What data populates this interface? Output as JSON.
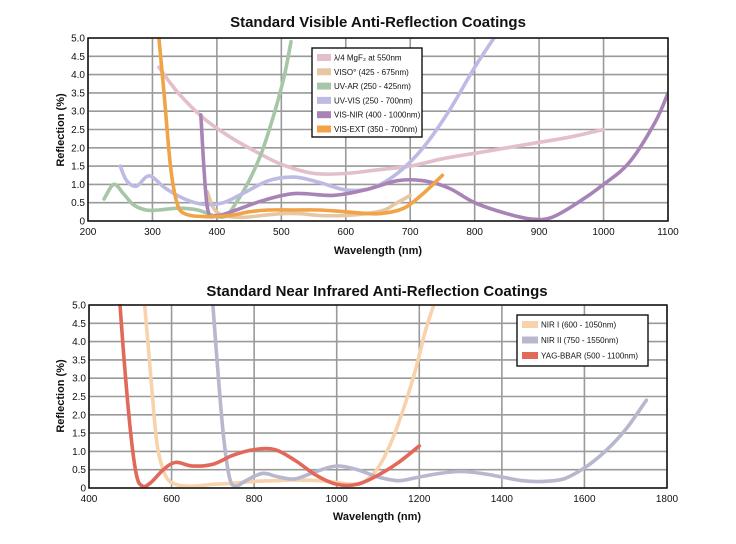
{
  "chart_data": [
    {
      "type": "line",
      "title": "Standard Visible Anti-Reflection Coatings",
      "xlabel": "Wavelength (nm)",
      "ylabel": "Reflection (%)",
      "xlim": [
        200,
        1100
      ],
      "ylim": [
        0,
        5.0
      ],
      "xticks": [
        "200",
        "300",
        "400",
        "500",
        "600",
        "700",
        "800",
        "900",
        "1000",
        "1100"
      ],
      "yticks": [
        "0",
        "0.5",
        "1.0",
        "1.5",
        "2.0",
        "2.5",
        "3.0",
        "3.5",
        "4.0",
        "4.5",
        "5.0"
      ],
      "grid": true,
      "legend_position": "top-center",
      "series": [
        {
          "name": "λ/4 MgF₂ at 550nm",
          "color": "#e3bfc9",
          "points": [
            [
              310,
              4.2
            ],
            [
              340,
              3.5
            ],
            [
              380,
              2.8
            ],
            [
              420,
              2.3
            ],
            [
              460,
              1.9
            ],
            [
              500,
              1.55
            ],
            [
              550,
              1.3
            ],
            [
              600,
              1.3
            ],
            [
              650,
              1.4
            ],
            [
              700,
              1.5
            ],
            [
              750,
              1.7
            ],
            [
              800,
              1.85
            ],
            [
              850,
              2.0
            ],
            [
              900,
              2.15
            ],
            [
              950,
              2.3
            ],
            [
              1000,
              2.5
            ]
          ]
        },
        {
          "name": "VISO° (425 - 675nm)",
          "color": "#e5c7a2",
          "points": [
            [
              385,
              0.8
            ],
            [
              395,
              0.35
            ],
            [
              410,
              0.15
            ],
            [
              440,
              0.1
            ],
            [
              470,
              0.15
            ],
            [
              500,
              0.2
            ],
            [
              530,
              0.2
            ],
            [
              560,
              0.15
            ],
            [
              600,
              0.15
            ],
            [
              630,
              0.2
            ],
            [
              660,
              0.3
            ],
            [
              675,
              0.45
            ],
            [
              700,
              0.7
            ]
          ]
        },
        {
          "name": "UV-AR (250 - 425nm)",
          "color": "#a7c6a7",
          "points": [
            [
              225,
              0.6
            ],
            [
              240,
              1.0
            ],
            [
              255,
              0.75
            ],
            [
              270,
              0.45
            ],
            [
              290,
              0.3
            ],
            [
              310,
              0.3
            ],
            [
              340,
              0.35
            ],
            [
              370,
              0.3
            ],
            [
              400,
              0.12
            ],
            [
              415,
              0.15
            ],
            [
              430,
              0.5
            ],
            [
              450,
              1.1
            ],
            [
              470,
              1.9
            ],
            [
              490,
              3.0
            ],
            [
              505,
              4.0
            ],
            [
              515,
              4.9
            ]
          ]
        },
        {
          "name": "UV-VIS (250 - 700nm)",
          "color": "#bdbbe4",
          "points": [
            [
              250,
              1.5
            ],
            [
              260,
              1.1
            ],
            [
              275,
              0.95
            ],
            [
              290,
              1.2
            ],
            [
              300,
              1.2
            ],
            [
              320,
              0.9
            ],
            [
              350,
              0.6
            ],
            [
              380,
              0.45
            ],
            [
              410,
              0.5
            ],
            [
              440,
              0.75
            ],
            [
              480,
              1.1
            ],
            [
              520,
              1.2
            ],
            [
              560,
              1.05
            ],
            [
              600,
              0.85
            ],
            [
              640,
              0.9
            ],
            [
              680,
              1.3
            ],
            [
              720,
              2.0
            ],
            [
              760,
              3.0
            ],
            [
              800,
              4.2
            ],
            [
              830,
              5.0
            ]
          ]
        },
        {
          "name": "VIS-NIR (400 - 1000nm)",
          "color": "#a884b6",
          "points": [
            [
              375,
              2.9
            ],
            [
              385,
              0.4
            ],
            [
              400,
              0.15
            ],
            [
              430,
              0.3
            ],
            [
              470,
              0.55
            ],
            [
              520,
              0.75
            ],
            [
              580,
              0.7
            ],
            [
              630,
              0.85
            ],
            [
              680,
              1.1
            ],
            [
              720,
              1.1
            ],
            [
              760,
              0.9
            ],
            [
              800,
              0.5
            ],
            [
              850,
              0.2
            ],
            [
              890,
              0.05
            ],
            [
              920,
              0.1
            ],
            [
              960,
              0.5
            ],
            [
              1000,
              1.0
            ],
            [
              1040,
              1.6
            ],
            [
              1080,
              2.7
            ],
            [
              1100,
              3.5
            ]
          ]
        },
        {
          "name": "VIS-EXT (350 - 700nm)",
          "color": "#f0a447",
          "points": [
            [
              310,
              5.0
            ],
            [
              318,
              3.5
            ],
            [
              328,
              1.5
            ],
            [
              338,
              0.5
            ],
            [
              350,
              0.2
            ],
            [
              380,
              0.12
            ],
            [
              420,
              0.15
            ],
            [
              450,
              0.25
            ],
            [
              480,
              0.3
            ],
            [
              520,
              0.3
            ],
            [
              560,
              0.3
            ],
            [
              600,
              0.25
            ],
            [
              650,
              0.2
            ],
            [
              690,
              0.35
            ],
            [
              720,
              0.75
            ],
            [
              750,
              1.25
            ]
          ]
        }
      ]
    },
    {
      "type": "line",
      "title": "Standard Near Infrared Anti-Reflection Coatings",
      "xlabel": "Wavelength (nm)",
      "ylabel": "Reflection (%)",
      "xlim": [
        400,
        1800
      ],
      "ylim": [
        0,
        5.0
      ],
      "xticks": [
        "400",
        "600",
        "800",
        "1000",
        "1200",
        "1400",
        "1600",
        "1800"
      ],
      "yticks": [
        "0",
        "0.5",
        "1.0",
        "1.5",
        "2.0",
        "2.5",
        "3.0",
        "3.5",
        "4.0",
        "4.5",
        "5.0"
      ],
      "grid": true,
      "legend_position": "top-right",
      "series": [
        {
          "name": "NIR I (600 - 1050nm)",
          "color": "#f8d2ab",
          "points": [
            [
              535,
              5.0
            ],
            [
              550,
              3.0
            ],
            [
              565,
              1.2
            ],
            [
              585,
              0.35
            ],
            [
              610,
              0.1
            ],
            [
              650,
              0.05
            ],
            [
              700,
              0.1
            ],
            [
              740,
              0.12
            ],
            [
              800,
              0.18
            ],
            [
              850,
              0.2
            ],
            [
              900,
              0.22
            ],
            [
              960,
              0.2
            ],
            [
              1000,
              0.15
            ],
            [
              1040,
              0.1
            ],
            [
              1070,
              0.2
            ],
            [
              1100,
              0.55
            ],
            [
              1130,
              1.2
            ],
            [
              1160,
              2.1
            ],
            [
              1190,
              3.2
            ],
            [
              1215,
              4.3
            ],
            [
              1235,
              5.0
            ]
          ]
        },
        {
          "name": "NIR II (750 - 1550nm)",
          "color": "#b7b7ce",
          "points": [
            [
              700,
              5.0
            ],
            [
              710,
              3.5
            ],
            [
              725,
              1.5
            ],
            [
              740,
              0.3
            ],
            [
              755,
              0.05
            ],
            [
              780,
              0.2
            ],
            [
              820,
              0.4
            ],
            [
              860,
              0.3
            ],
            [
              900,
              0.25
            ],
            [
              950,
              0.45
            ],
            [
              1000,
              0.6
            ],
            [
              1050,
              0.5
            ],
            [
              1100,
              0.3
            ],
            [
              1150,
              0.2
            ],
            [
              1200,
              0.3
            ],
            [
              1250,
              0.4
            ],
            [
              1300,
              0.45
            ],
            [
              1350,
              0.4
            ],
            [
              1400,
              0.3
            ],
            [
              1450,
              0.2
            ],
            [
              1500,
              0.18
            ],
            [
              1550,
              0.25
            ],
            [
              1600,
              0.55
            ],
            [
              1650,
              1.0
            ],
            [
              1700,
              1.6
            ],
            [
              1750,
              2.4
            ]
          ]
        },
        {
          "name": "YAG-BBAR (500 - 1100nm)",
          "color": "#e2695a",
          "points": [
            [
              475,
              5.0
            ],
            [
              485,
              3.5
            ],
            [
              500,
              1.6
            ],
            [
              515,
              0.35
            ],
            [
              530,
              0.05
            ],
            [
              550,
              0.15
            ],
            [
              580,
              0.5
            ],
            [
              610,
              0.7
            ],
            [
              650,
              0.6
            ],
            [
              700,
              0.65
            ],
            [
              750,
              0.9
            ],
            [
              800,
              1.05
            ],
            [
              850,
              1.05
            ],
            [
              900,
              0.75
            ],
            [
              950,
              0.35
            ],
            [
              1000,
              0.1
            ],
            [
              1050,
              0.1
            ],
            [
              1100,
              0.35
            ],
            [
              1150,
              0.7
            ],
            [
              1200,
              1.15
            ]
          ]
        }
      ]
    }
  ]
}
